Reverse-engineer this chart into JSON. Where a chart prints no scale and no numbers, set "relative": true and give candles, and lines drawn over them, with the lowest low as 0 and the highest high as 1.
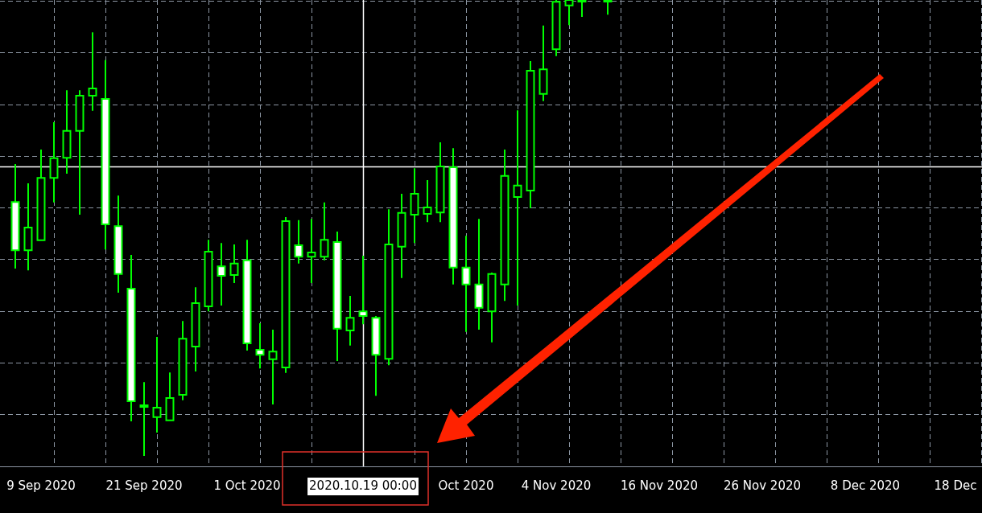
{
  "chart_data": {
    "type": "candlestick",
    "relative": true,
    "grid": true,
    "colors": [
      null,
      "#ffffff",
      "#000000",
      "#000000",
      "#000000",
      "#000000",
      "#000000",
      "#000000",
      "#ffffff",
      "#ffffff",
      "#ffffff",
      "#000000",
      "#000000",
      "#000000",
      "#000000",
      "#000000",
      "#000000",
      "#ffffff",
      "#000000",
      "#ffffff",
      "#ffffff",
      "#000000",
      "#000000",
      "#ffffff",
      "#000000",
      "#000000",
      "#ffffff",
      "#000000",
      "#ffffff",
      "#ffffff",
      "#000000",
      "#000000",
      "#000000",
      "#000000",
      "#000000",
      "#ffffff",
      "#ffffff",
      "#ffffff",
      "#000000",
      "#000000",
      "#000000",
      "#000000",
      "#000000",
      "#000000",
      "#000000",
      "#000000",
      null,
      "#000000",
      null,
      null,
      null,
      null,
      null,
      null,
      null,
      null,
      null,
      null,
      null,
      null,
      null,
      null,
      null,
      null,
      null,
      null,
      null,
      null,
      null,
      null,
      null,
      null,
      null,
      null,
      null,
      null,
      null
    ],
    "categories": [
      null,
      null,
      null,
      "9 Sep 2020",
      null,
      null,
      null,
      null,
      null,
      null,
      null,
      "21 Sep 2020",
      null,
      null,
      null,
      null,
      null,
      null,
      null,
      "1 Oct 2020",
      null,
      null,
      null,
      null,
      null,
      null,
      null,
      null,
      "2020.10.19 00:00",
      null,
      null,
      null,
      null,
      null,
      null,
      null,
      "Oct 2020",
      null,
      null,
      null,
      null,
      null,
      null,
      "4 Nov 2020",
      null,
      null,
      null,
      null,
      null,
      null,
      null,
      "16 Nov 2020",
      null,
      null,
      null,
      null,
      null,
      null,
      null,
      "26 Nov 2020",
      null,
      null,
      null,
      null,
      null,
      null,
      null,
      "8 Dec 2020",
      null,
      null,
      null,
      null,
      null,
      null,
      "18 Dec",
      null,
      null
    ],
    "ohlc": [
      null,
      [
        0.557,
        0.64,
        0.411,
        0.451
      ],
      [
        0.451,
        0.598,
        0.407,
        0.501
      ],
      [
        0.473,
        0.672,
        0.473,
        0.61
      ],
      [
        0.61,
        0.732,
        0.556,
        0.653
      ],
      [
        0.654,
        0.802,
        0.619,
        0.713
      ],
      [
        0.713,
        0.802,
        0.529,
        0.79
      ],
      [
        0.79,
        0.929,
        0.757,
        0.806
      ],
      [
        0.783,
        0.868,
        0.453,
        0.508
      ],
      [
        0.504,
        0.571,
        0.358,
        0.399
      ],
      [
        0.367,
        0.441,
        0.076,
        0.12
      ],
      [
        0.111,
        0.162,
        0,
        0.111
      ],
      [
        0.085,
        0.261,
        0.051,
        0.106
      ],
      [
        0.078,
        0.183,
        0.078,
        0.127
      ],
      [
        0.134,
        0.296,
        0.122,
        0.257
      ],
      [
        0.24,
        0.37,
        0.185,
        0.335
      ],
      [
        0.328,
        0.474,
        0.317,
        0.448
      ],
      [
        0.416,
        0.467,
        0.33,
        0.395
      ],
      [
        0.397,
        0.464,
        0.379,
        0.422
      ],
      [
        0.429,
        0.474,
        0.231,
        0.247
      ],
      [
        0.233,
        0.291,
        0.192,
        0.222
      ],
      [
        0.212,
        0.277,
        0.113,
        0.229
      ],
      [
        0.194,
        0.524,
        0.182,
        0.515
      ],
      [
        0.462,
        0.517,
        0.422,
        0.437
      ],
      [
        0.437,
        0.52,
        0.379,
        0.446
      ],
      [
        0.437,
        0.556,
        0.429,
        0.474
      ],
      [
        0.469,
        0.492,
        0.208,
        0.279
      ],
      [
        0.275,
        0.351,
        0.242,
        0.303
      ],
      [
        0.317,
        0.439,
        0.289,
        0.307
      ],
      [
        0.303,
        0.307,
        0.132,
        0.222
      ],
      [
        0.213,
        0.541,
        0.199,
        0.464
      ],
      [
        0.459,
        0.575,
        0.39,
        0.533
      ],
      [
        0.529,
        0.631,
        0.467,
        0.575
      ],
      [
        0.531,
        0.605,
        0.513,
        0.545
      ],
      [
        0.534,
        0.688,
        0.513,
        0.635
      ],
      [
        0.633,
        0.675,
        0.376,
        0.413
      ],
      [
        0.413,
        0.483,
        0.272,
        0.376
      ],
      [
        0.376,
        0.52,
        0.277,
        0.325
      ],
      [
        0.317,
        0.402,
        0.249,
        0.399
      ],
      [
        0.376,
        0.672,
        0.34,
        0.614
      ],
      [
        0.568,
        0.758,
        0.33,
        0.593
      ],
      [
        0.582,
        0.866,
        0.543,
        0.845
      ],
      [
        0.794,
        0.944,
        0.778,
        0.848
      ],
      [
        0.892,
        1,
        0.877,
        0.996
      ],
      [
        0.988,
        1,
        0.945,
        1
      ],
      [
        1,
        1,
        0.963,
        1
      ],
      null,
      [
        1,
        1,
        0.968,
        1
      ],
      null,
      null,
      null,
      null,
      null,
      null,
      null,
      null,
      null,
      null,
      null,
      null,
      null,
      null,
      null,
      null,
      null,
      null,
      null,
      null,
      null,
      null,
      null,
      null,
      null,
      null,
      null,
      null,
      null
    ],
    "ref_lines": [
      {
        "axis": "x",
        "value": "2020.10.19 00:00",
        "color": "#ffffff"
      },
      {
        "axis": "y",
        "value": 0.635,
        "color": "#ffffff"
      }
    ]
  }
}
